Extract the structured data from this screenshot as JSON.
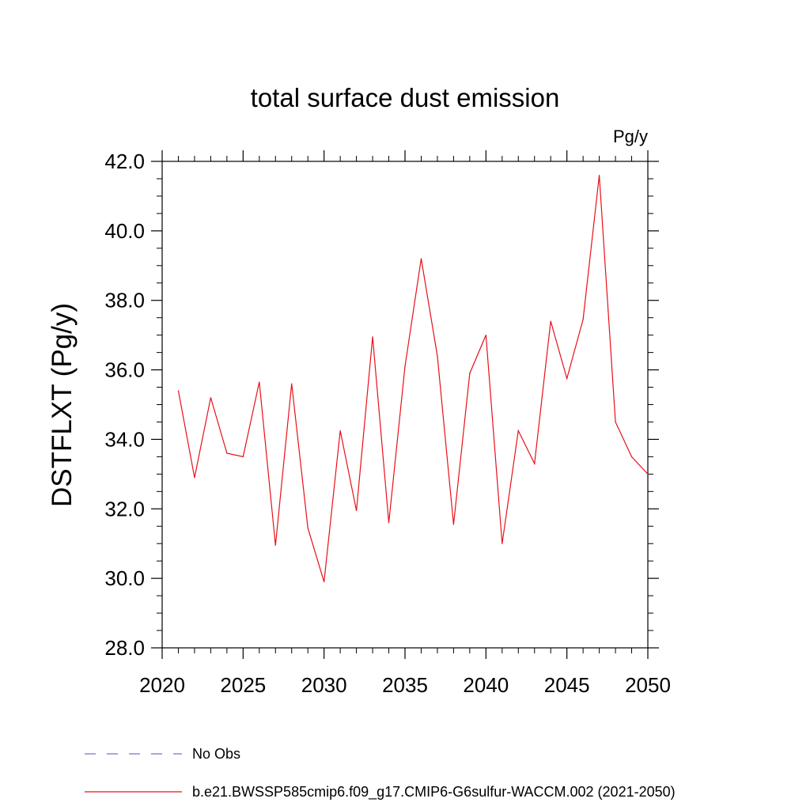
{
  "chart_data": {
    "type": "line",
    "title": "total surface dust emission",
    "units_label": "Pg/y",
    "ylabel": "DSTFLXT  (Pg/y)",
    "xlabel": "",
    "xlim": [
      2020,
      2050
    ],
    "ylim": [
      28.0,
      42.0
    ],
    "x_ticks": [
      2020,
      2025,
      2030,
      2035,
      2040,
      2045,
      2050
    ],
    "x_tick_labels": [
      "2020",
      "2025",
      "2030",
      "2035",
      "2040",
      "2045",
      "2050"
    ],
    "y_ticks": [
      28.0,
      30.0,
      32.0,
      34.0,
      36.0,
      38.0,
      40.0,
      42.0
    ],
    "y_tick_labels": [
      "28.0",
      "30.0",
      "32.0",
      "34.0",
      "36.0",
      "38.0",
      "40.0",
      "42.0"
    ],
    "grid": false,
    "legend_position": "bottom-left",
    "series": [
      {
        "name": "b.e21.BWSSP585cmip6.f09_g17.CMIP6-G6sulfur-WACCM.002 (2021-2050)",
        "color": "#e8101a",
        "x": [
          2021,
          2022,
          2023,
          2024,
          2025,
          2026,
          2027,
          2028,
          2029,
          2030,
          2031,
          2032,
          2033,
          2034,
          2035,
          2036,
          2037,
          2038,
          2039,
          2040,
          2041,
          2042,
          2043,
          2044,
          2045,
          2046,
          2047,
          2048,
          2049,
          2050
        ],
        "values": [
          35.4,
          32.9,
          35.2,
          33.6,
          33.5,
          35.65,
          30.95,
          35.6,
          31.45,
          29.9,
          34.25,
          31.95,
          36.95,
          31.6,
          36.1,
          39.2,
          36.4,
          31.55,
          35.9,
          37.0,
          31.0,
          34.25,
          33.3,
          37.4,
          35.75,
          37.45,
          41.6,
          34.5,
          33.5,
          33.0
        ]
      }
    ],
    "legend": [
      {
        "label": "No Obs",
        "color": "#7a6fd0",
        "style": "dashed"
      },
      {
        "label": "b.e21.BWSSP585cmip6.f09_g17.CMIP6-G6sulfur-WACCM.002 (2021-2050)",
        "color": "#e8101a",
        "style": "solid"
      }
    ]
  }
}
